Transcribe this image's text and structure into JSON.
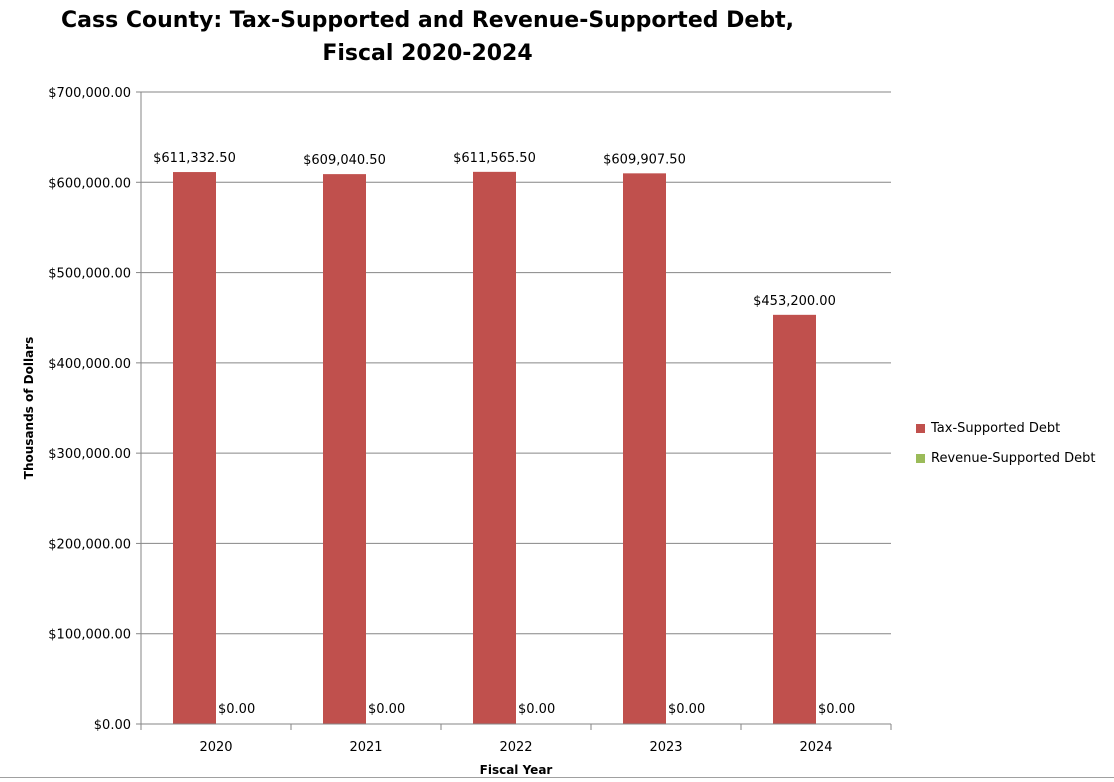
{
  "chart_data": {
    "type": "bar",
    "title_line1": "Cass County: Tax-Supported and Revenue-Supported Debt,",
    "title_line2": "Fiscal 2020-2024",
    "xlabel": "Fiscal Year",
    "ylabel": "Thousands of Dollars",
    "ylim": [
      0,
      700000
    ],
    "yticks": [
      "$0.00",
      "$100,000.00",
      "$200,000.00",
      "$300,000.00",
      "$400,000.00",
      "$500,000.00",
      "$600,000.00",
      "$700,000.00"
    ],
    "grid": true,
    "legend_position": "right",
    "categories": [
      "2020",
      "2021",
      "2022",
      "2023",
      "2024"
    ],
    "series": [
      {
        "name": "Tax-Supported Debt",
        "color": "#C0504D",
        "values": [
          611332.5,
          609040.5,
          611565.5,
          609907.5,
          453200.0
        ],
        "labels": [
          "$611,332.50",
          "$609,040.50",
          "$611,565.50",
          "$609,907.50",
          "$453,200.00"
        ]
      },
      {
        "name": "Revenue-Supported Debt",
        "color": "#9BBB59",
        "values": [
          0,
          0,
          0,
          0,
          0
        ],
        "labels": [
          "$0.00",
          "$0.00",
          "$0.00",
          "$0.00",
          "$0.00"
        ]
      }
    ]
  }
}
